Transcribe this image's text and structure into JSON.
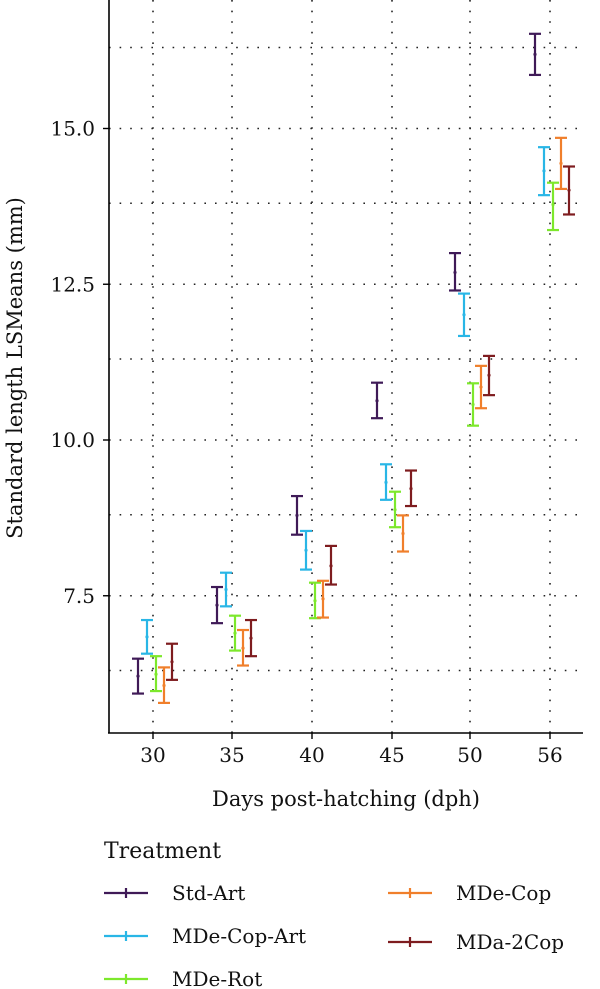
{
  "chart_data": {
    "type": "errorbar",
    "xlabel": "Days post-hatching (dph)",
    "ylabel": "Standard length LSMeans (mm)",
    "categories": [
      "30",
      "35",
      "40",
      "45",
      "50",
      "56"
    ],
    "y_ticks": [
      "7.5",
      "10.0",
      "12.5",
      "15.0"
    ],
    "ylim": [
      5.55,
      17.1
    ],
    "grid": true,
    "legend": {
      "title": "Treatment",
      "placement": "bottom",
      "entries": [
        "Std-Art",
        "MDe-Cop-Art",
        "MDe-Rot",
        "MDe-Cop",
        "MDa-2Cop"
      ]
    },
    "series": [
      {
        "name": "Std-Art",
        "color": "#3f1a57",
        "mean": [
          6.21,
          7.35,
          8.79,
          10.63,
          12.69,
          16.19
        ],
        "lower": [
          5.93,
          7.06,
          8.48,
          10.35,
          12.4,
          15.86
        ],
        "upper": [
          6.49,
          7.64,
          9.1,
          10.92,
          13.0,
          16.52
        ]
      },
      {
        "name": "MDe-Cop-Art",
        "color": "#29b6e6",
        "mean": [
          6.84,
          7.6,
          8.23,
          9.32,
          12.01,
          14.32
        ],
        "lower": [
          6.57,
          7.33,
          7.92,
          9.04,
          11.67,
          13.93
        ],
        "upper": [
          7.11,
          7.87,
          8.54,
          9.61,
          12.35,
          14.7
        ]
      },
      {
        "name": "MDe-Rot",
        "color": "#7de82c",
        "mean": [
          6.24,
          6.9,
          7.42,
          8.88,
          10.57,
          13.78
        ],
        "lower": [
          5.97,
          6.62,
          7.14,
          8.6,
          10.23,
          13.37
        ],
        "upper": [
          6.53,
          7.18,
          7.71,
          9.17,
          10.91,
          14.13
        ]
      },
      {
        "name": "MDe-Cop",
        "color": "#f07f2b",
        "mean": [
          6.06,
          6.66,
          7.45,
          8.5,
          10.85,
          14.44
        ],
        "lower": [
          5.78,
          6.38,
          7.15,
          8.21,
          10.51,
          14.03
        ],
        "upper": [
          6.35,
          6.95,
          7.74,
          8.79,
          11.19,
          14.85
        ]
      },
      {
        "name": "MDa-2Cop",
        "color": "#7e1c1f",
        "mean": [
          6.44,
          6.82,
          7.98,
          9.22,
          11.04,
          14.01
        ],
        "lower": [
          6.15,
          6.53,
          7.68,
          8.94,
          10.72,
          13.62
        ],
        "upper": [
          6.73,
          7.11,
          8.3,
          9.51,
          11.35,
          14.39
        ]
      }
    ]
  }
}
